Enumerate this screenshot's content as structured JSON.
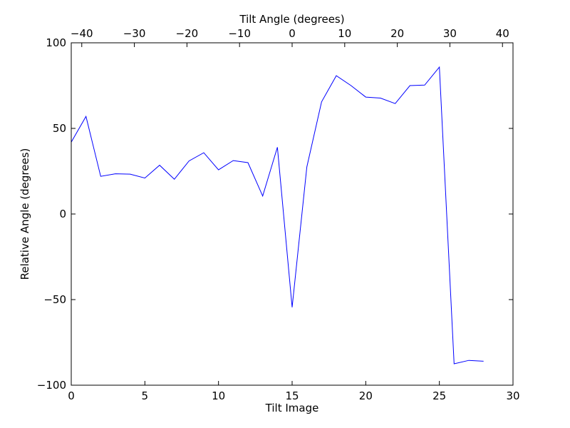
{
  "chart_data": {
    "type": "line",
    "title": "",
    "xlabel": "Tilt Image",
    "ylabel": "Relative Angle (degrees)",
    "x2label": "Tilt Angle (degrees)",
    "xlim": [
      0,
      30
    ],
    "ylim": [
      -100,
      100
    ],
    "x2lim": [
      -42,
      42
    ],
    "xticks": [
      0,
      5,
      10,
      15,
      20,
      25,
      30
    ],
    "yticks": [
      -100,
      -50,
      0,
      50,
      100
    ],
    "x2ticks": [
      -40,
      -30,
      -20,
      -10,
      0,
      10,
      20,
      30,
      40
    ],
    "xtick_labels": [
      "0",
      "5",
      "10",
      "15",
      "20",
      "25",
      "30"
    ],
    "ytick_labels": [
      "−100",
      "−50",
      "0",
      "50",
      "100"
    ],
    "x2tick_labels": [
      "−40",
      "−30",
      "−20",
      "−10",
      "0",
      "10",
      "20",
      "30",
      "40"
    ],
    "grid": false,
    "legend": "none",
    "series": [
      {
        "color": "#0000ff",
        "x": [
          0,
          1,
          2,
          3,
          4,
          5,
          6,
          7,
          8,
          9,
          10,
          11,
          12,
          13,
          14,
          15,
          16,
          17,
          18,
          19,
          20,
          21,
          22,
          23,
          24,
          25,
          26,
          27,
          28
        ],
        "y": [
          42,
          57,
          22,
          23.5,
          23.3,
          21,
          28.5,
          20.3,
          31,
          35.8,
          25.8,
          31.2,
          30,
          10.5,
          39,
          -54.5,
          27.5,
          65.5,
          80.8,
          75,
          68.3,
          67.7,
          64.5,
          75,
          75.3,
          85.8,
          -87.5,
          -85.5,
          -86
        ]
      }
    ]
  }
}
